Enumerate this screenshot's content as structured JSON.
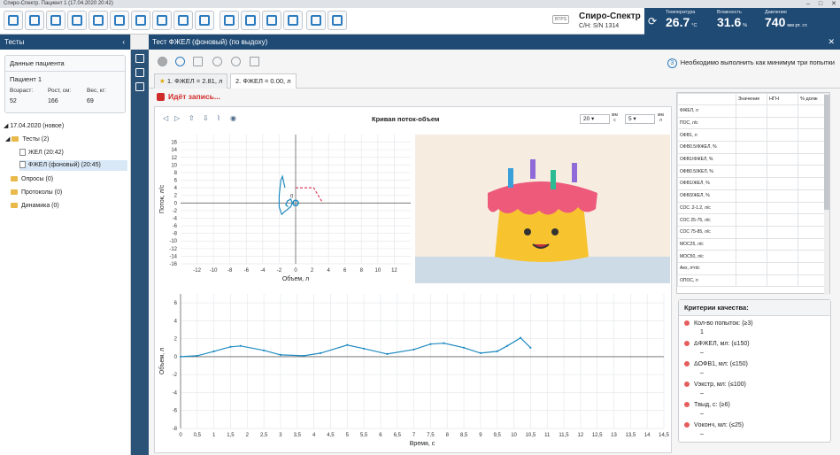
{
  "window": {
    "title": "Спиро-Спектр. Пациент 1 (17.04.2020 20:42)"
  },
  "brand": {
    "name": "Спиро-Спектр",
    "serial": "С/Н: S/N 1314",
    "btps": "BTPS"
  },
  "weather": {
    "temp_label": "Температура",
    "temp_value": "26.7",
    "temp_unit": "°С",
    "hum_label": "Влажность",
    "hum_value": "31.6",
    "hum_unit": "%",
    "press_label": "Давление",
    "press_value": "740",
    "press_unit": "мм рт. ст."
  },
  "left": {
    "header": "Тесты",
    "patient_header": "Данные пациента",
    "patient_name": "Пациент 1",
    "age_label": "Возраст:",
    "age": "52",
    "height_label": "Рост, см:",
    "height": "166",
    "weight_label": "Вес, кг:",
    "weight": "69",
    "tree": {
      "date": "17.04.2020 (новое)",
      "tests": "Тесты (2)",
      "test1": "ЖЕЛ (20:42)",
      "test2": "ФЖЕЛ (фоновый) (20:45)",
      "surveys": "Опросы (0)",
      "protocols": "Протоколы (0)",
      "dynamics": "Динамика (0)"
    }
  },
  "main": {
    "title": "Тест ФЖЕЛ (фоновый) (по выдоху)",
    "hint_number": "3",
    "hint": "Необходимо выполнить как минимум три попытки",
    "tab1": "1. ФЖЕЛ = 2.81, л",
    "tab2": "2. ФЖЕЛ = 0.00, л",
    "recording": "Идёт запись...",
    "plot_title": "Кривая поток-объем",
    "scale1": "20",
    "scale1_unit_top": "мм",
    "scale1_unit_bottom": "с",
    "scale2": "5",
    "scale2_unit_top": "мм",
    "scale2_unit_bottom": "л"
  },
  "table": {
    "headers": [
      "",
      "Значение",
      "НГН",
      "% долж"
    ],
    "rows": [
      "ФЖЕЛ, л",
      "ПОС, л/с",
      "ОФВ1, л",
      "ОФВ0.5/ФЖЕЛ, %",
      "ОФВ1/ФЖЕЛ, %",
      "ОФВ0.5/ЖЕЛ, %",
      "ОФВ1/ЖЕЛ, %",
      "ОФВ3/ЖЕЛ, %",
      "СОС .2-1.2, л/с",
      "СОС 25-75, л/с",
      "СОС 75-85, л/с",
      "МОС25, л/с",
      "МОС50, л/с",
      "Аех, л²л/с",
      "ОПОС, л"
    ]
  },
  "quality": {
    "header": "Критерии качества:",
    "items": [
      {
        "label": "Кол-во попыток: (≥3)",
        "value": "1"
      },
      {
        "label": "ΔФЖЕЛ, мл: (≤150)",
        "value": "–"
      },
      {
        "label": "ΔОФВ1, мл: (≤150)",
        "value": "–"
      },
      {
        "label": "Vэкстр, мл: (≤100)",
        "value": "–"
      },
      {
        "label": "Tвыд, с: (≥6)",
        "value": "–"
      },
      {
        "label": "Vоконч, мл: (≤25)",
        "value": "–"
      }
    ]
  },
  "chart_data": [
    {
      "type": "line",
      "title": "Кривая поток-объем",
      "xlabel": "Объем, л",
      "ylabel": "Поток, л/с",
      "xlim": [
        -14,
        14
      ],
      "ylim": [
        -16,
        18
      ],
      "xticks": [
        -12,
        -10,
        -8,
        -6,
        -4,
        -2,
        0,
        2,
        4,
        6,
        8,
        10,
        12
      ],
      "yticks": [
        -16,
        -14,
        -12,
        -10,
        -8,
        -6,
        -4,
        -2,
        0,
        2,
        4,
        6,
        8,
        10,
        12,
        14,
        16
      ],
      "grid": true,
      "series": [
        {
          "style": "solid",
          "color": "#1f8ac0",
          "x": [
            -1.3,
            -1.6,
            -1.8,
            -2.0,
            -2.0,
            -1.7,
            -1.2,
            -0.6,
            -0.4,
            -0.6,
            -1.0,
            -1.2,
            -0.9
          ],
          "y": [
            4,
            7,
            6,
            2,
            -1,
            -3,
            -2,
            -1,
            0,
            1,
            0.5,
            -0.5,
            -1
          ]
        },
        {
          "style": "dashed",
          "color": "#d9415a",
          "x": [
            0,
            2.2,
            3.3
          ],
          "y": [
            4,
            4,
            0
          ],
          "anchor": [
            0,
            0
          ],
          "anchor_label": "0"
        }
      ]
    },
    {
      "type": "line",
      "xlabel": "Время, с",
      "ylabel": "Объем, л",
      "xlim": [
        0,
        14.5
      ],
      "ylim": [
        -8,
        7
      ],
      "xticks": [
        0,
        0.5,
        1,
        1.5,
        2,
        2.5,
        3,
        3.5,
        4,
        4.5,
        5,
        5.5,
        6,
        6.5,
        7,
        7.5,
        8,
        8.5,
        9,
        9.5,
        10,
        10.5,
        11,
        11.5,
        12,
        12.5,
        13,
        13.5,
        14,
        14.5
      ],
      "xtick_labels": [
        "0",
        "0,5",
        "1",
        "1,5",
        "2",
        "2,5",
        "3",
        "3,5",
        "4",
        "4,5",
        "5",
        "5,5",
        "6",
        "6,5",
        "7",
        "7,5",
        "8",
        "8,5",
        "9",
        "9,5",
        "10",
        "10,5",
        "11",
        "11,5",
        "12",
        "12,5",
        "13",
        "13,5",
        "14",
        "14,5"
      ],
      "yticks": [
        -8,
        -6,
        -4,
        -2,
        0,
        2,
        4,
        6
      ],
      "grid": true,
      "series": [
        {
          "color": "#1f8ac0",
          "x": [
            0,
            0.5,
            1.0,
            1.5,
            1.8,
            2.5,
            3.0,
            3.7,
            4.2,
            5.0,
            5.5,
            6.2,
            7.0,
            7.5,
            7.9,
            8.5,
            9.0,
            9.5,
            9.8,
            10.2,
            10.5
          ],
          "y": [
            0,
            0.1,
            0.6,
            1.1,
            1.2,
            0.7,
            0.2,
            0.1,
            0.4,
            1.3,
            0.9,
            0.3,
            0.8,
            1.4,
            1.5,
            1.0,
            0.4,
            0.6,
            1.2,
            2.1,
            1.0
          ]
        }
      ]
    }
  ]
}
